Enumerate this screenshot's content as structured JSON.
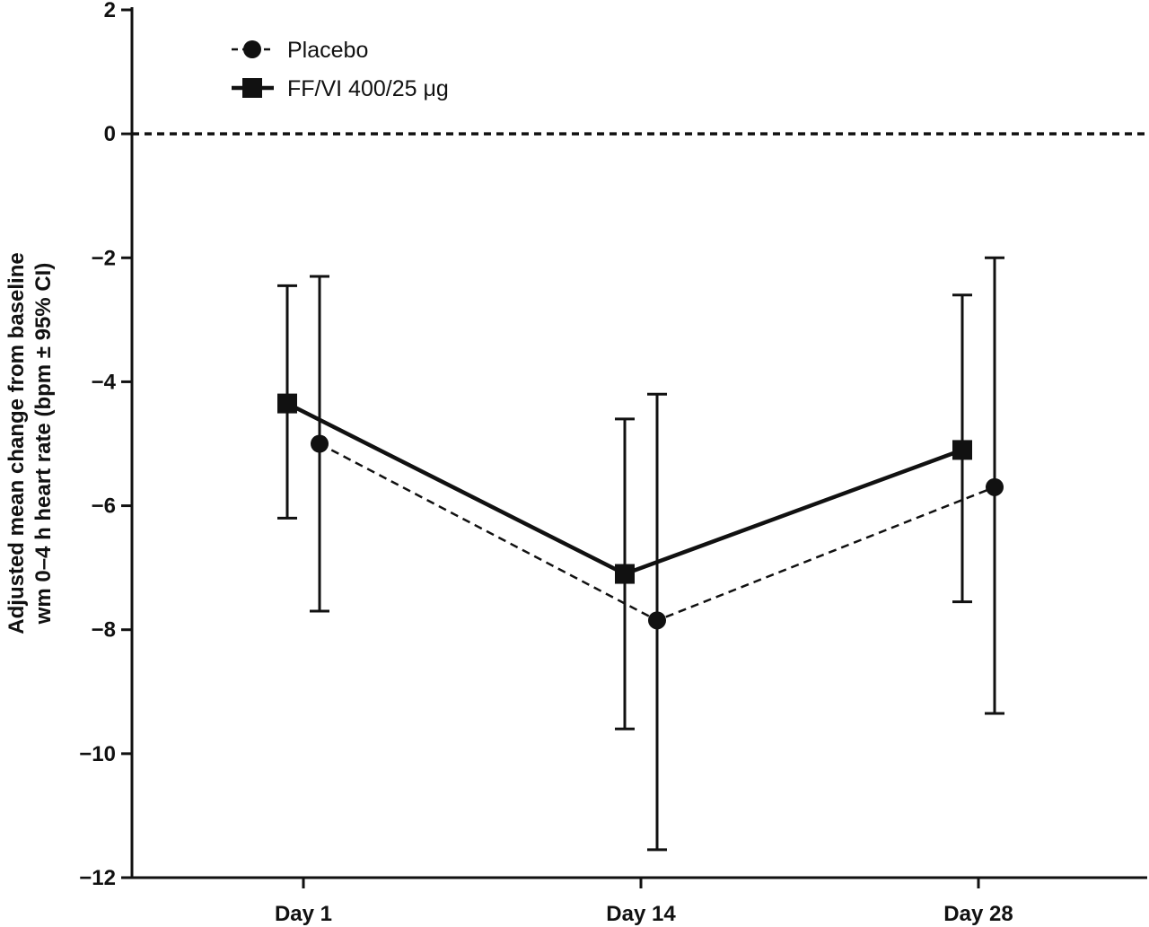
{
  "chart_data": {
    "type": "line",
    "title": "",
    "xlabel": "",
    "ylabel_lines": [
      "Adjusted mean change from baseline",
      "wm 0–4 h heart rate (bpm ± 95% CI)"
    ],
    "categories": [
      "Day 1",
      "Day 14",
      "Day 28"
    ],
    "ylim": [
      -12,
      2
    ],
    "yticks": [
      2,
      0,
      -2,
      -4,
      -6,
      -8,
      -10,
      -12
    ],
    "ytick_labels": [
      "2",
      "0",
      "−2",
      "−4",
      "−6",
      "−8",
      "−10",
      "−12"
    ],
    "reference_line": {
      "y": 0,
      "style": "dashed"
    },
    "legend_position": "top-left",
    "series": [
      {
        "name": "Placebo",
        "marker": "circle",
        "line_style": "dashed",
        "values": [
          -5.0,
          -7.85,
          -5.7
        ],
        "ci_lower": [
          -7.7,
          -11.55,
          -9.35
        ],
        "ci_upper": [
          -2.3,
          -4.2,
          -2.0
        ]
      },
      {
        "name": "FF/VI 400/25 μg",
        "marker": "square",
        "line_style": "solid",
        "values": [
          -4.35,
          -7.1,
          -5.1
        ],
        "ci_lower": [
          -6.2,
          -9.6,
          -7.55
        ],
        "ci_upper": [
          -2.45,
          -4.6,
          -2.6
        ]
      }
    ]
  }
}
